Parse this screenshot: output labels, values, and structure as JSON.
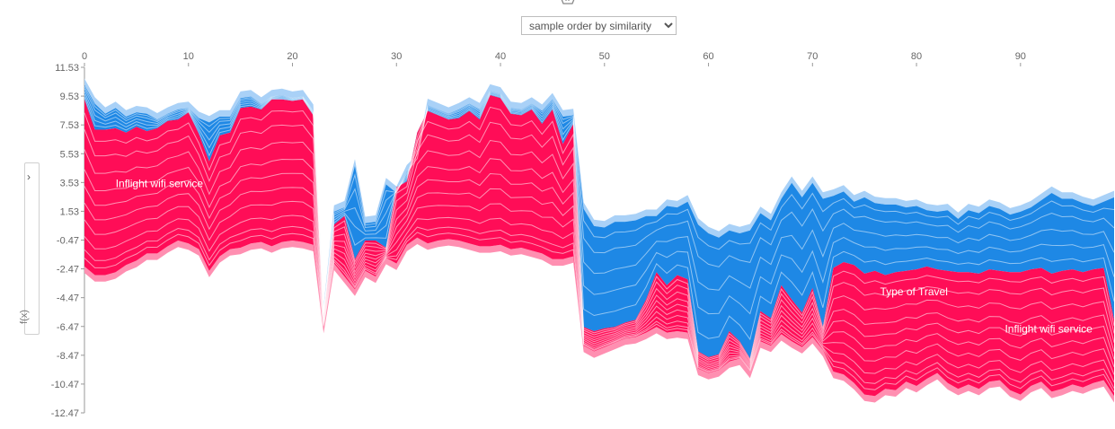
{
  "controls": {
    "order_select": {
      "selected": "sample order by similarity",
      "options": [
        "sample order by similarity"
      ]
    },
    "side_toggle_label": "›",
    "side_axis_label": "f(x)"
  },
  "colors": {
    "positive": "#ff0d57",
    "positive_light": "#ff8fb1",
    "negative": "#1e88e5",
    "negative_light": "#a9d1f7",
    "axis": "#666666"
  },
  "chart_data": {
    "type": "area",
    "title": "",
    "xlabel": "",
    "ylabel": "f(x)",
    "xlim": [
      0,
      99
    ],
    "ylim": [
      -12.47,
      11.53
    ],
    "x_ticks": [
      "0",
      "10",
      "20",
      "30",
      "40",
      "50",
      "60",
      "70",
      "80",
      "90"
    ],
    "y_ticks": [
      "11.53",
      "9.53",
      "7.53",
      "5.53",
      "3.53",
      "1.53",
      "-0.47",
      "-2.47",
      "-4.47",
      "-6.47",
      "-8.47",
      "-10.47",
      "-12.47"
    ],
    "annotations": [
      "Inflight wifi service",
      "Type of Travel",
      "Inflight wifi service"
    ],
    "series": [
      {
        "name": "positive_top",
        "values": [
          9.3,
          7.2,
          7.2,
          7.3,
          7.0,
          7.4,
          7.1,
          7.3,
          7.8,
          7.9,
          8.4,
          6.9,
          5.0,
          6.8,
          7.0,
          8.7,
          8.8,
          8.6,
          9.3,
          9.3,
          9.2,
          9.3,
          8.2,
          -5.5,
          0.6,
          1.2,
          -1.8,
          -0.5,
          -0.5,
          -1.0,
          3.2,
          3.6,
          7.0,
          8.5,
          8.2,
          7.9,
          8.0,
          8.5,
          7.9,
          9.6,
          9.4,
          8.3,
          8.2,
          8.6,
          7.6,
          8.6,
          6.2,
          7.6,
          -6.5,
          -6.8,
          -6.6,
          -6.5,
          -6.2,
          -6.0,
          -4.6,
          -2.7,
          -3.6,
          -2.9,
          -3.2,
          -8.2,
          -8.6,
          -8.4,
          -6.8,
          -7.5,
          -8.7,
          -5.4,
          -5.9,
          -3.6,
          -4.6,
          -5.5,
          -3.8,
          -6.5,
          -2.4,
          -2.0,
          -2.2,
          -2.8,
          -2.6,
          -2.9,
          -2.7,
          -2.6,
          -2.5,
          -2.3,
          -2.5,
          -2.6,
          -2.7,
          -2.7,
          -2.8,
          -2.5,
          -2.6,
          -2.7,
          -2.7,
          -2.5,
          -2.4,
          -2.8,
          -2.6,
          -2.5,
          -2.7,
          -2.5,
          -2.4,
          -6.0
        ]
      },
      {
        "name": "negative_top",
        "values": [
          10.3,
          9.0,
          8.3,
          8.7,
          8.1,
          8.4,
          8.3,
          7.9,
          8.3,
          8.6,
          8.7,
          8.0,
          7.7,
          8.1,
          8.1,
          9.4,
          9.5,
          9.0,
          9.5,
          9.6,
          9.4,
          9.5,
          8.5,
          -5.5,
          1.5,
          1.8,
          4.7,
          0.7,
          0.8,
          3.4,
          2.8,
          4.3,
          5.0,
          8.9,
          8.6,
          8.3,
          8.6,
          9.0,
          8.6,
          9.9,
          9.7,
          8.7,
          8.6,
          9.0,
          8.5,
          9.3,
          8.1,
          8.2,
          1.7,
          0.5,
          0.4,
          0.8,
          0.8,
          0.9,
          1.2,
          1.2,
          1.9,
          1.8,
          2.2,
          0.6,
          0.0,
          -0.3,
          0.2,
          0.0,
          0.2,
          1.4,
          0.9,
          2.4,
          3.5,
          2.5,
          3.5,
          2.4,
          2.6,
          2.9,
          2.2,
          2.5,
          2.1,
          2.0,
          2.0,
          1.8,
          1.9,
          1.6,
          1.5,
          1.6,
          1.0,
          1.6,
          1.4,
          1.9,
          1.7,
          1.3,
          1.5,
          1.8,
          2.3,
          2.8,
          2.4,
          2.4,
          2.1,
          1.9,
          2.2,
          2.5
        ]
      },
      {
        "name": "positive_bottom",
        "values": [
          -2.3,
          -2.9,
          -2.9,
          -2.7,
          -2.2,
          -1.9,
          -1.4,
          -1.4,
          -0.9,
          -0.5,
          -0.7,
          -1.1,
          -2.6,
          -1.6,
          -1.1,
          -1.0,
          -0.7,
          -0.6,
          -0.9,
          -0.6,
          -0.5,
          -0.6,
          -0.8,
          -6.5,
          -2.1,
          -3.0,
          -3.9,
          -2.6,
          -3.0,
          -1.7,
          -2.1,
          -0.8,
          -0.3,
          -0.7,
          -0.5,
          -0.4,
          -0.5,
          -0.7,
          -0.9,
          -0.9,
          -0.8,
          -1.1,
          -1.0,
          -1.2,
          -1.4,
          -1.8,
          -1.8,
          -1.6,
          -7.8,
          -8.2,
          -7.9,
          -7.6,
          -7.3,
          -7.2,
          -6.9,
          -6.5,
          -6.9,
          -6.8,
          -6.9,
          -9.4,
          -9.7,
          -9.5,
          -8.9,
          -8.7,
          -9.6,
          -7.5,
          -7.8,
          -7.0,
          -7.5,
          -7.9,
          -7.2,
          -8.1,
          -9.6,
          -9.8,
          -10.4,
          -11.2,
          -11.3,
          -10.8,
          -10.9,
          -10.3,
          -10.6,
          -10.1,
          -9.7,
          -10.4,
          -10.8,
          -10.5,
          -10.8,
          -10.3,
          -10.2,
          -10.9,
          -11.2,
          -10.6,
          -10.3,
          -11.0,
          -10.8,
          -10.5,
          -10.7,
          -10.4,
          -10.2,
          -11.3
        ]
      }
    ]
  }
}
